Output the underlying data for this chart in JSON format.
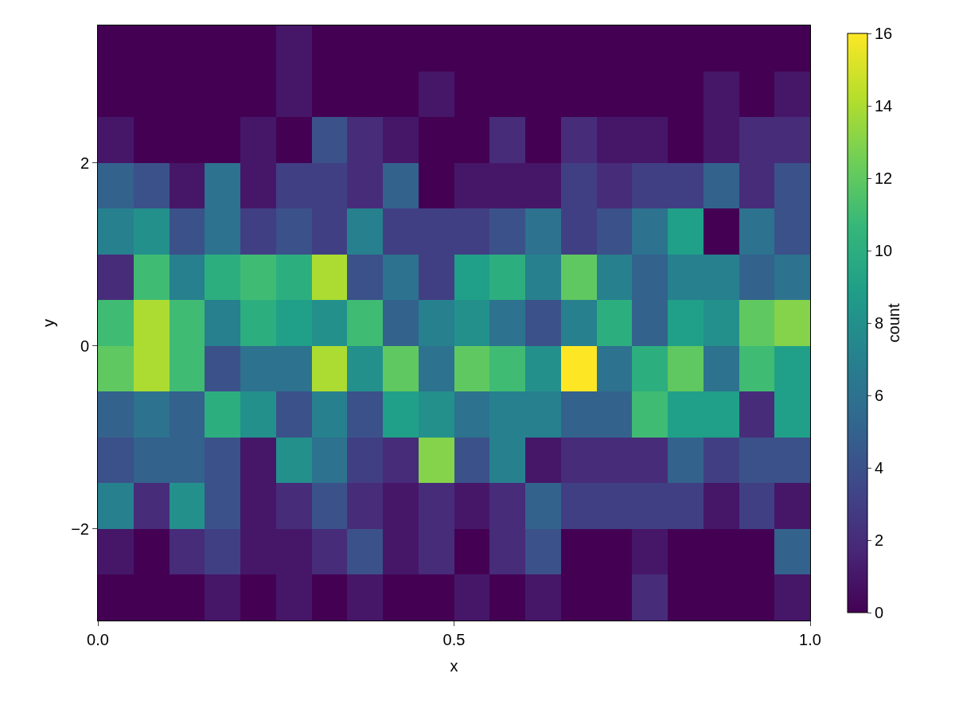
{
  "chart_data": {
    "type": "heatmap",
    "xlabel": "x",
    "ylabel": "y",
    "clabel": "count",
    "x": [
      0.025,
      0.075,
      0.125,
      0.175,
      0.225,
      0.275,
      0.325,
      0.375,
      0.425,
      0.475,
      0.525,
      0.575,
      0.625,
      0.675,
      0.725,
      0.775,
      0.825,
      0.875,
      0.925,
      0.975
    ],
    "y": [
      3.25,
      2.75,
      2.25,
      1.75,
      1.25,
      0.75,
      0.25,
      -0.25,
      -0.75,
      -1.25,
      -1.75,
      -2.25,
      -2.75
    ],
    "cells": [
      [
        0,
        0,
        0,
        0,
        0,
        1,
        0,
        0,
        0,
        0,
        0,
        0,
        0,
        0,
        0,
        0,
        0,
        0,
        0,
        0
      ],
      [
        0,
        0,
        0,
        0,
        0,
        1,
        0,
        0,
        0,
        1,
        0,
        0,
        0,
        0,
        0,
        0,
        0,
        1,
        0,
        1
      ],
      [
        1,
        0,
        0,
        0,
        1,
        0,
        4,
        2,
        1,
        0,
        0,
        2,
        0,
        2,
        1,
        1,
        0,
        1,
        2,
        2
      ],
      [
        5,
        4,
        1,
        6,
        1,
        3,
        3,
        2,
        5,
        0,
        1,
        1,
        1,
        3,
        2,
        3,
        3,
        5,
        2,
        4
      ],
      [
        7,
        8,
        4,
        6,
        3,
        4,
        3,
        7,
        3,
        3,
        3,
        4,
        6,
        3,
        4,
        6,
        9,
        0,
        6,
        4
      ],
      [
        2,
        11,
        7,
        10,
        11,
        10,
        14,
        4,
        6,
        3,
        9,
        10,
        7,
        12,
        7,
        5,
        7,
        7,
        5,
        6
      ],
      [
        11,
        14,
        11,
        7,
        10,
        9,
        8,
        11,
        5,
        7,
        8,
        6,
        4,
        7,
        10,
        5,
        9,
        8,
        12,
        13
      ],
      [
        12,
        14,
        11,
        4,
        6,
        6,
        14,
        8,
        12,
        6,
        12,
        11,
        8,
        16,
        6,
        10,
        12,
        6,
        11,
        9
      ],
      [
        5,
        6,
        5,
        10,
        8,
        4,
        7,
        4,
        9,
        8,
        6,
        7,
        7,
        5,
        5,
        11,
        9,
        9,
        2,
        9
      ],
      [
        4,
        5,
        5,
        4,
        1,
        8,
        6,
        3,
        2,
        13,
        4,
        7,
        1,
        2,
        2,
        2,
        5,
        3,
        4,
        4
      ],
      [
        7,
        2,
        8,
        4,
        1,
        2,
        4,
        2,
        1,
        2,
        1,
        2,
        5,
        3,
        3,
        3,
        3,
        1,
        3,
        1
      ],
      [
        1,
        0,
        2,
        3,
        1,
        1,
        2,
        4,
        1,
        2,
        0,
        2,
        4,
        0,
        0,
        1,
        0,
        0,
        0,
        5
      ],
      [
        0,
        0,
        0,
        1,
        0,
        1,
        0,
        1,
        0,
        0,
        1,
        0,
        1,
        0,
        0,
        2,
        0,
        0,
        0,
        1
      ]
    ],
    "clim": [
      0,
      16
    ],
    "cticks": [
      0,
      2,
      4,
      6,
      8,
      10,
      12,
      14,
      16
    ],
    "xlim": [
      0,
      1
    ],
    "xticks": [
      {
        "value": 0,
        "label": "0.0"
      },
      {
        "value": 0.5,
        "label": "0.5"
      },
      {
        "value": 1,
        "label": "1.0"
      }
    ],
    "ylim": [
      -3,
      3.5
    ],
    "yticks": [
      -2,
      0,
      2
    ]
  }
}
